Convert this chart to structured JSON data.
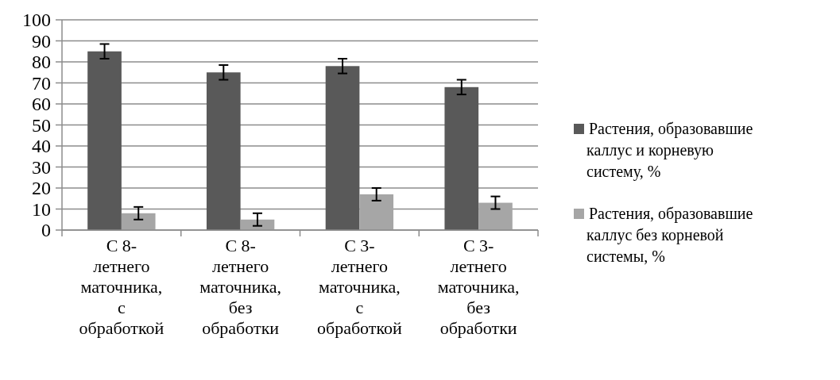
{
  "chart_data": {
    "type": "bar",
    "categories": [
      "С 8-\nлетнего\nматочника,\nс\nобработкой",
      "С 8-\nлетнего\nматочника,\nбез\nобработки",
      "С 3-\nлетнего\nматочника,\nс\nобработкой",
      "С 3-\nлетнего\nматочника,\nбез\nобработки"
    ],
    "series": [
      {
        "name": "Растения, образовавшие\nкаллус и корневую\nсистему, %",
        "color": "#595959",
        "values": [
          85,
          75,
          78,
          68
        ],
        "errors": [
          3.5,
          3.5,
          3.5,
          3.5
        ]
      },
      {
        "name": "Растения, образовавшие\nкаллус без корневой\nсистемы, %",
        "color": "#a6a6a6",
        "values": [
          8,
          5,
          17,
          13
        ],
        "errors": [
          3,
          3,
          3,
          3
        ]
      }
    ],
    "ylim": [
      0,
      100
    ],
    "yticks": [
      0,
      10,
      20,
      30,
      40,
      50,
      60,
      70,
      80,
      90,
      100
    ],
    "grid": "y",
    "legend": "right"
  }
}
